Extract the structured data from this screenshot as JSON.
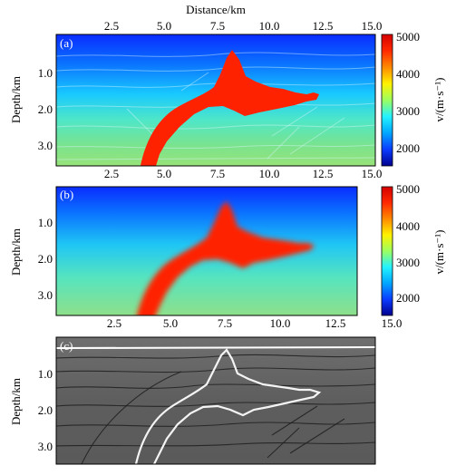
{
  "chart_data": [
    {
      "panel": "(a)",
      "type": "heatmap",
      "xlabel": "Distance/km",
      "ylabel": "Depth/km",
      "x_ticks": [
        "2.5",
        "5.0",
        "7.5",
        "10.0",
        "12.5",
        "15.0"
      ],
      "y_ticks": [
        "1.0",
        "2.0",
        "3.0"
      ],
      "xlim": [
        0,
        15
      ],
      "ylim": [
        0.3,
        3.5
      ],
      "colorbar": {
        "label": "v/(m·s⁻¹)",
        "ticks": [
          "2000",
          "3000",
          "4000",
          "5000"
        ],
        "range": [
          1500,
          5000
        ],
        "colors": [
          "#00008f",
          "#0a3cff",
          "#00a6ff",
          "#23f2ff",
          "#9cff5f",
          "#fff200",
          "#ff8a00",
          "#ff2a00",
          "#d50000"
        ]
      },
      "salt_body_color": "#ff2200"
    },
    {
      "panel": "(b)",
      "type": "heatmap",
      "ylabel": "Depth/km",
      "x_ticks": [
        "2.5",
        "5.0",
        "7.5",
        "10.0",
        "12.5",
        "15.0"
      ],
      "y_ticks": [
        "1.0",
        "2.0",
        "3.0"
      ],
      "xlim": [
        0,
        15
      ],
      "ylim": [
        0.3,
        3.5
      ],
      "colorbar": {
        "label": "v/(m·s⁻¹)",
        "ticks": [
          "2000",
          "3000",
          "4000",
          "5000"
        ],
        "range": [
          1500,
          5000
        ]
      },
      "salt_body_color": "#ff2200"
    },
    {
      "panel": "(c)",
      "type": "heatmap",
      "ylabel": "Depth/km",
      "y_ticks": [
        "1.0",
        "2.0",
        "3.0"
      ],
      "xlim": [
        0,
        15
      ],
      "ylim": [
        0.3,
        3.5
      ],
      "colormap": "gray"
    }
  ]
}
